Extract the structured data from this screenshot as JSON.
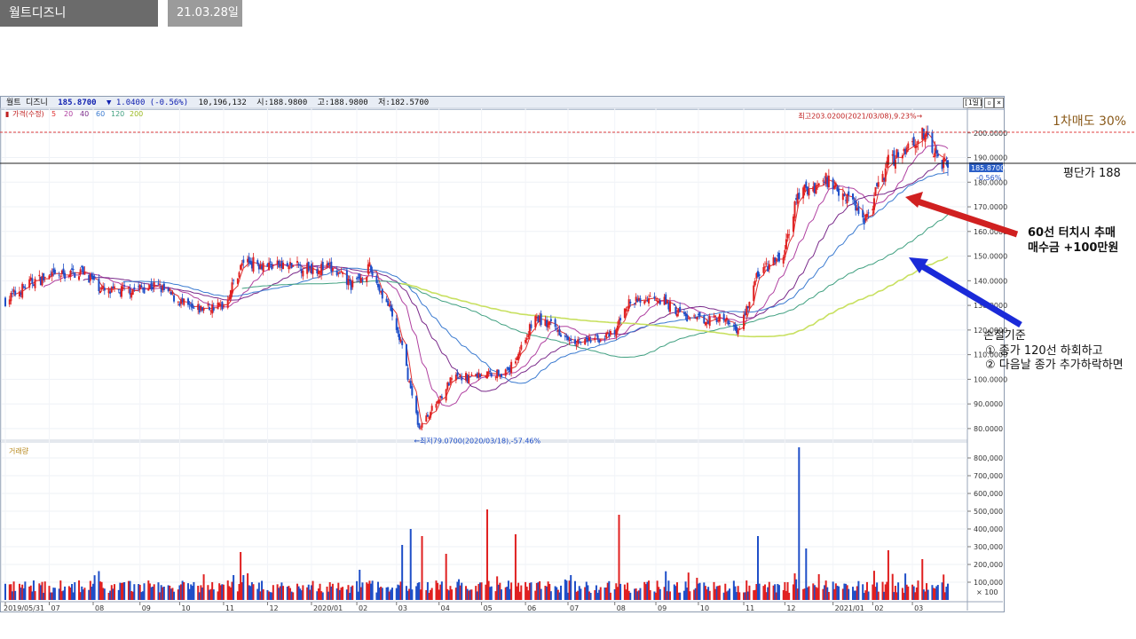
{
  "tabs": {
    "title": "월트디즈니",
    "date": "21.03.28일"
  },
  "chart_header": {
    "name": "월트 디즈니",
    "price": "185.8700",
    "change": "▼ 1.0400 (-0.56%)",
    "volume": "10,196,132",
    "open": "시:188.9800",
    "high": "고:188.9800",
    "low": "저:182.5700",
    "period_button": "[1일]"
  },
  "price_legend": {
    "label": "가격(수정)",
    "ma_labels": [
      "5",
      "20",
      "40",
      "60",
      "120",
      "200"
    ]
  },
  "volume_legend": {
    "label": "거래량",
    "unit_label": "× 100"
  },
  "colors": {
    "up": "#e02020",
    "down": "#1f4fc8",
    "ma5": "#e03030",
    "ma20": "#b040a0",
    "ma40": "#7a2a8a",
    "ma60": "#3a7ad0",
    "ma120": "#40a080",
    "ma200": "#c8e060"
  },
  "annotations": {
    "sell_level": "1차매도 30%",
    "avg_price": "평단가 188",
    "add_buy_line1": "60선 터치시 추매",
    "add_buy_line2": "매수금 +100만원",
    "stop_title": "손절기준",
    "stop_rule1": "① 종가 120선 하회하고",
    "stop_rule2": "② 다음날 종가 추가하락하면"
  },
  "chart_data": {
    "type": "candlestick",
    "x_range": [
      "2019-05-31",
      "2021-03-26"
    ],
    "price_axis": {
      "ylim": [
        76,
        210
      ],
      "ticks": [
        "80.0000",
        "90.0000",
        "100.0000",
        "110.0000",
        "120.0000",
        "130.0000",
        "140.0000",
        "150.0000",
        "160.0000",
        "170.0000",
        "180.0000",
        "190.0000",
        "200.0000"
      ]
    },
    "volume_axis": {
      "ylim": [
        0,
        880000
      ],
      "ticks": [
        "100,000",
        "200,000",
        "300,000",
        "400,000",
        "500,000",
        "600,000",
        "700,000",
        "800,000"
      ]
    },
    "x_tick_labels": [
      "2019/05/31",
      "07",
      "08",
      "09",
      "10",
      "11",
      "12",
      "2020/01",
      "02",
      "03",
      "04",
      "05",
      "06",
      "07",
      "08",
      "09",
      "10",
      "11",
      "12",
      "2021/01",
      "02",
      "03"
    ],
    "x_tick_dates": [
      "2019-05-31",
      "2019-07-01",
      "2019-08-01",
      "2019-09-03",
      "2019-10-01",
      "2019-11-01",
      "2019-12-02",
      "2020-01-02",
      "2020-02-03",
      "2020-03-02",
      "2020-04-01",
      "2020-05-01",
      "2020-06-01",
      "2020-07-01",
      "2020-08-03",
      "2020-09-01",
      "2020-10-01",
      "2020-11-02",
      "2020-12-01",
      "2021-01-04",
      "2021-02-01",
      "2021-03-01"
    ],
    "close_anchors": [
      [
        "2019-05-31",
        132
      ],
      [
        "2019-06-20",
        140
      ],
      [
        "2019-07-25",
        144
      ],
      [
        "2019-08-10",
        135
      ],
      [
        "2019-09-15",
        138
      ],
      [
        "2019-10-10",
        128
      ],
      [
        "2019-11-01",
        130
      ],
      [
        "2019-11-15",
        148
      ],
      [
        "2019-12-10",
        146
      ],
      [
        "2020-01-15",
        145
      ],
      [
        "2020-01-31",
        138
      ],
      [
        "2020-02-12",
        145
      ],
      [
        "2020-02-25",
        130
      ],
      [
        "2020-03-05",
        115
      ],
      [
        "2020-03-18",
        80
      ],
      [
        "2020-04-10",
        100
      ],
      [
        "2020-05-01",
        102
      ],
      [
        "2020-05-20",
        103
      ],
      [
        "2020-06-08",
        125
      ],
      [
        "2020-07-10",
        115
      ],
      [
        "2020-08-03",
        118
      ],
      [
        "2020-08-10",
        130
      ],
      [
        "2020-09-01",
        134
      ],
      [
        "2020-09-25",
        124
      ],
      [
        "2020-10-15",
        125
      ],
      [
        "2020-10-30",
        120
      ],
      [
        "2020-11-12",
        143
      ],
      [
        "2020-11-30",
        150
      ],
      [
        "2020-12-10",
        175
      ],
      [
        "2020-12-31",
        181
      ],
      [
        "2021-01-15",
        174
      ],
      [
        "2021-01-27",
        165
      ],
      [
        "2021-02-12",
        188
      ],
      [
        "2021-03-08",
        200
      ],
      [
        "2021-03-19",
        190
      ],
      [
        "2021-03-26",
        186
      ]
    ],
    "price_annotations": [
      {
        "label": "최고203.0200(2021/03/08),9.23%→",
        "date": "2021-03-08",
        "value": 203.02
      },
      {
        "label": "←최저79.0700(2020/03/18),-57.46%",
        "date": "2020-03-18",
        "value": 79.07
      }
    ],
    "last_price": {
      "value": 185.87,
      "label": "185.8700",
      "change_label": "-0.56%"
    },
    "reference_lines": [
      {
        "value": 201,
        "style": "dashed"
      },
      {
        "value": 188,
        "style": "solid"
      }
    ],
    "volume_spikes": [
      [
        "2019-11-13",
        270000
      ],
      [
        "2019-11-08",
        140000
      ],
      [
        "2019-11-18",
        150000
      ],
      [
        "2020-02-05",
        170000
      ],
      [
        "2020-03-06",
        310000
      ],
      [
        "2020-03-12",
        400000
      ],
      [
        "2020-03-20",
        360000
      ],
      [
        "2020-04-05",
        260000
      ],
      [
        "2020-05-05",
        510000
      ],
      [
        "2020-05-25",
        370000
      ],
      [
        "2020-07-03",
        140000
      ],
      [
        "2020-08-06",
        480000
      ],
      [
        "2020-11-12",
        360000
      ],
      [
        "2020-12-11",
        860000
      ],
      [
        "2020-12-16",
        290000
      ],
      [
        "2021-02-12",
        280000
      ],
      [
        "2021-03-08",
        230000
      ]
    ]
  }
}
